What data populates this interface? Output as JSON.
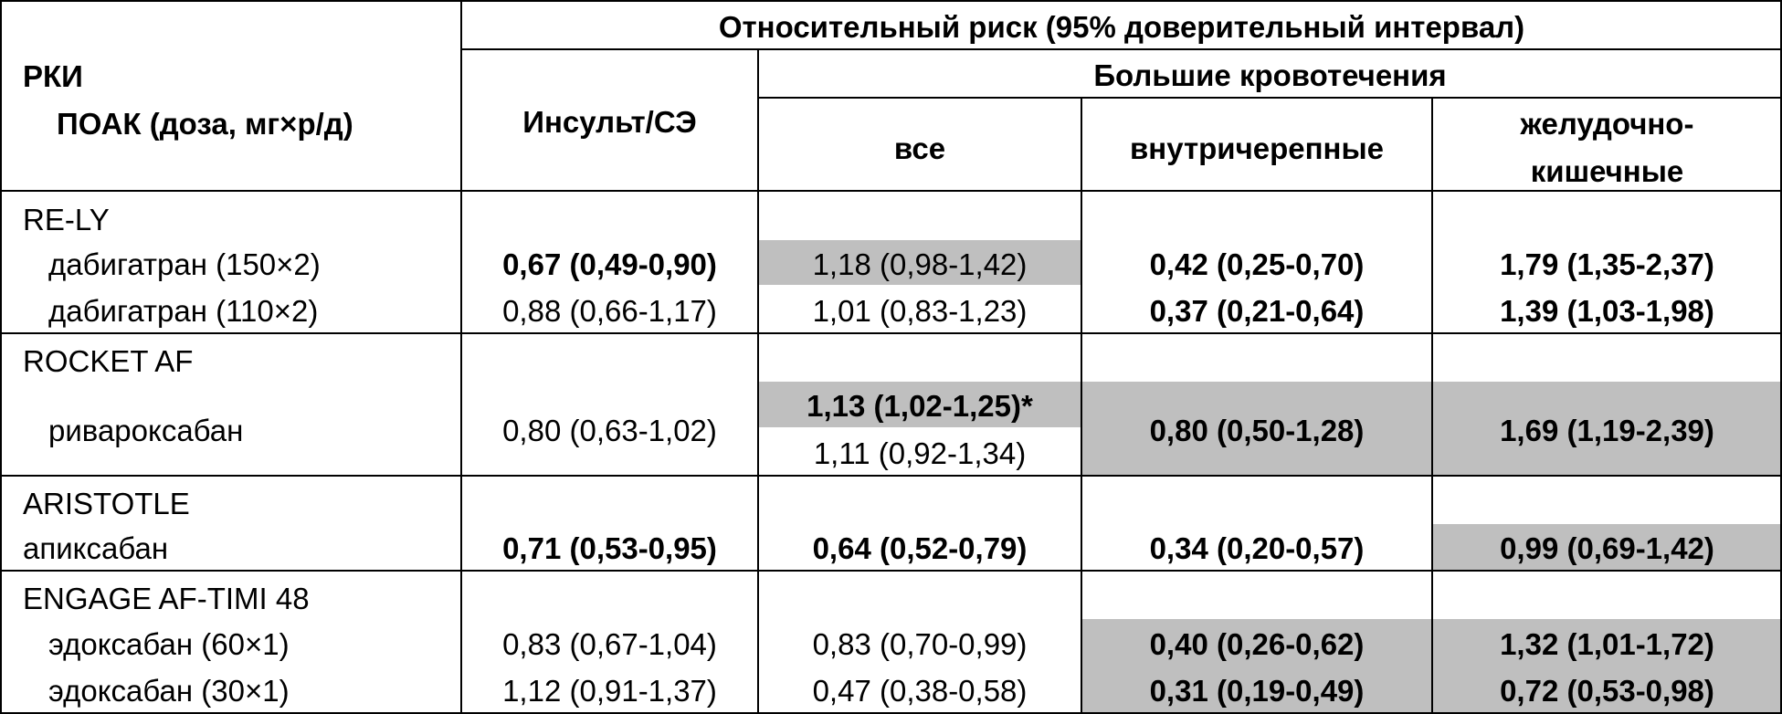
{
  "header": {
    "rct_label": "РКИ",
    "doac_label": "ПОАК (доза, мг×р/д)",
    "rr_title": "Относительный риск (95% доверительный интервал)",
    "stroke_col": "Инсульт/СЭ",
    "bleed_title": "Большие кровотечения",
    "all_col": "все",
    "ich_col": "внутричерепные",
    "gi_col_line1": "желудочно-",
    "gi_col_line2": "кишечные"
  },
  "groups": {
    "rely": {
      "trial": "RE-LY",
      "rows": [
        {
          "drug": "дабигатран (150×2)",
          "stroke": "0,67 (0,49-0,90)",
          "all": "1,18 (0,98-1,42)",
          "ich": "0,42 (0,25-0,70)",
          "gi": "1,79 (1,35-2,37)"
        },
        {
          "drug": "дабигатран (110×2)",
          "stroke": "0,88 (0,66-1,17)",
          "all": "1,01 (0,83-1,23)",
          "ich": "0,37 (0,21-0,64)",
          "gi": "1,39 (1,03-1,98)"
        }
      ]
    },
    "rocket": {
      "trial": "ROCKET AF",
      "drug": "ривароксабан",
      "stroke": "0,80 (0,63-1,02)",
      "all_1": "1,13 (1,02-1,25)*",
      "all_2": "1,11 (0,92-1,34)",
      "ich": "0,80 (0,50-1,28)",
      "gi": "1,69 (1,19-2,39)"
    },
    "aristotle": {
      "trial": "ARISTOTLE",
      "drug": "апиксабан",
      "stroke": "0,71 (0,53-0,95)",
      "all": "0,64 (0,52-0,79)",
      "ich": "0,34 (0,20-0,57)",
      "gi": "0,99 (0,69-1,42)"
    },
    "engage": {
      "trial": "ENGAGE AF-TIMI 48",
      "rows": [
        {
          "drug": "эдоксабан (60×1)",
          "stroke": "0,83 (0,67-1,04)",
          "all": "0,83 (0,70-0,99)",
          "ich": "0,40 (0,26-0,62)",
          "gi": "1,32 (1,01-1,72)"
        },
        {
          "drug": "эдоксабан (30×1)",
          "stroke": "1,12 (0,91-1,37)",
          "all": "0,47 (0,38-0,58)",
          "ich": "0,31 (0,19-0,49)",
          "gi": "0,72 (0,53-0,98)"
        }
      ]
    }
  },
  "colors": {
    "shade": "#bfbfbf",
    "border": "#000000"
  }
}
